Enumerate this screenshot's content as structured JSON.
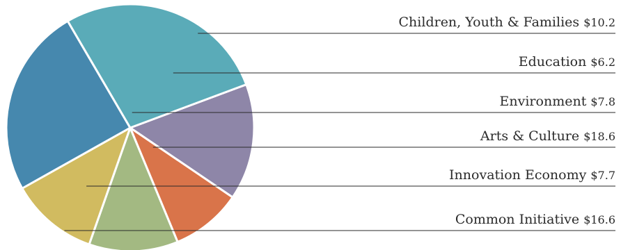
{
  "chart_data": {
    "type": "pie",
    "title": "",
    "slices": [
      {
        "label": "Children, Youth & Families",
        "value": 10.2,
        "value_label": "$10.2",
        "color": "#8e86a8"
      },
      {
        "label": "Education",
        "value": 6.2,
        "value_label": "$6.2",
        "color": "#d9744a"
      },
      {
        "label": "Environment",
        "value": 7.8,
        "value_label": "$7.8",
        "color": "#a3b982"
      },
      {
        "label": "Innovation Economy",
        "value": 7.7,
        "value_label": "$7.7",
        "color": "#d1bb60"
      },
      {
        "label": "Common Initiative",
        "value": 16.6,
        "value_label": "$16.6",
        "color": "#4688ae"
      },
      {
        "label": "Arts & Culture",
        "value": 18.6,
        "value_label": "$18.6",
        "color": "#5aabb8"
      }
    ],
    "legend_order": [
      0,
      1,
      2,
      5,
      3,
      4
    ],
    "legend": "right-of-chart with leader lines"
  }
}
